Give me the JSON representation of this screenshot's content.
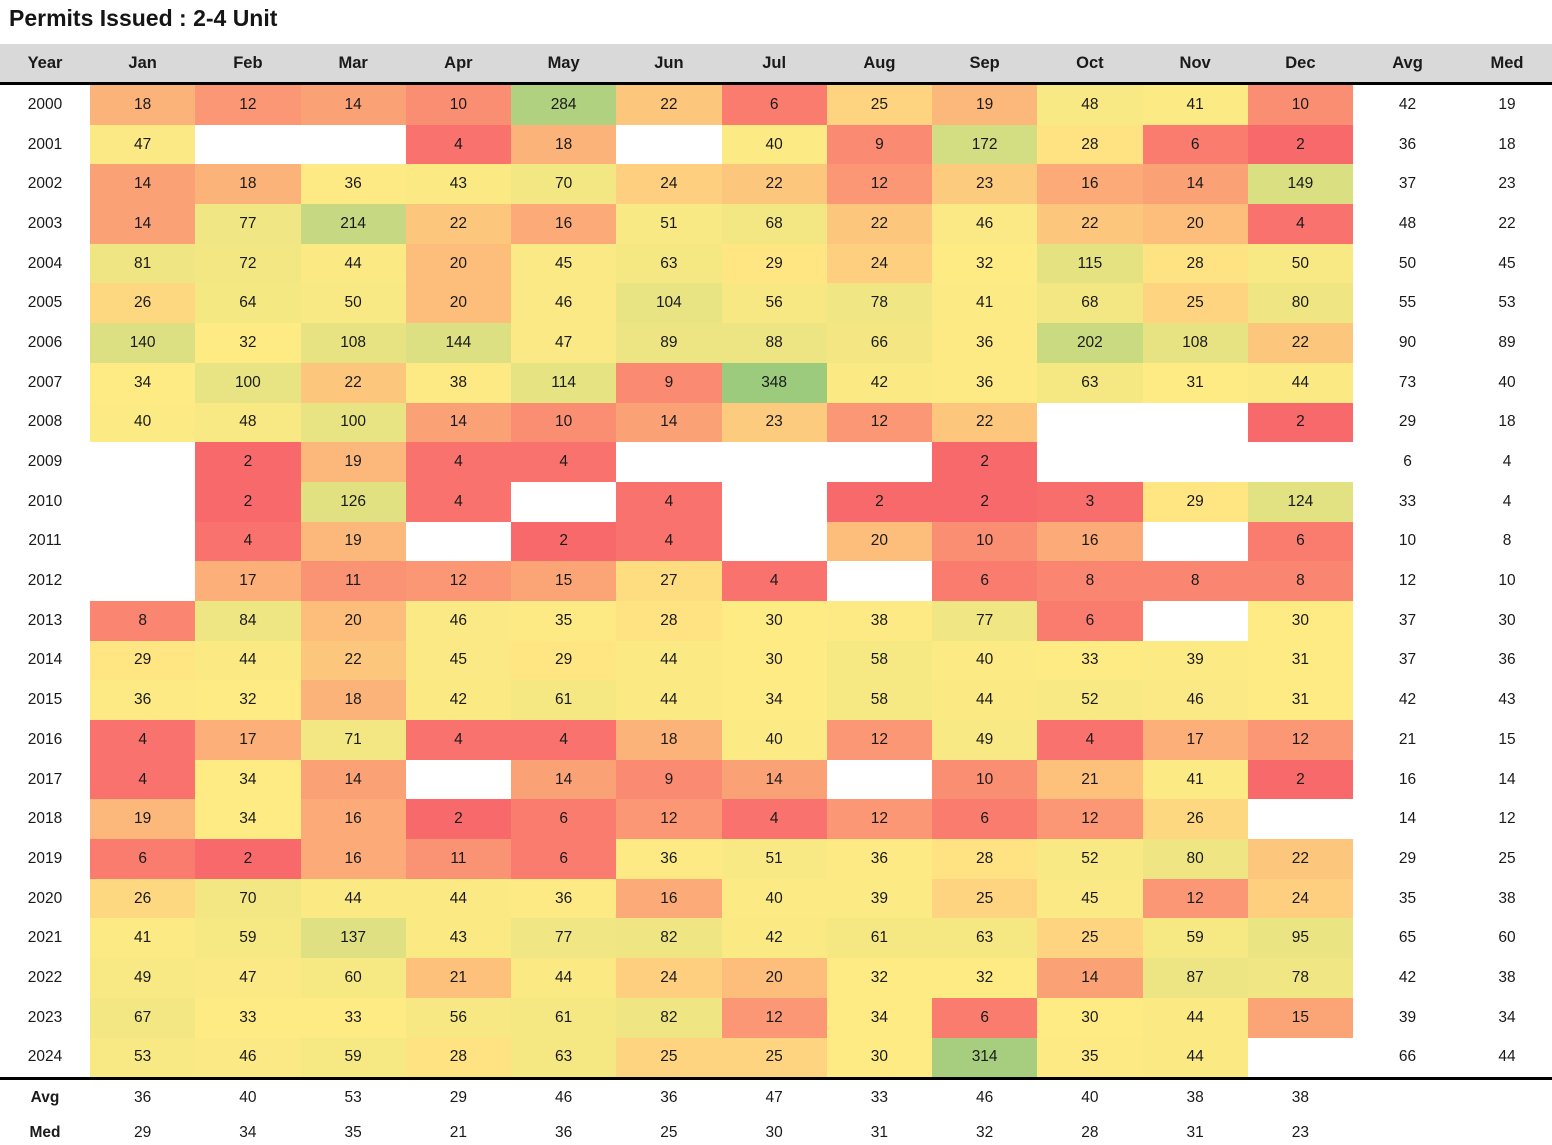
{
  "title": "Permits Issued : 2-4 Unit",
  "colors": {
    "header_bg": "#D9D9D9",
    "text": "#1A1A1A",
    "border": "#000000"
  },
  "chart_data": {
    "type": "heatmap",
    "title": "Permits Issued : 2-4 Unit",
    "columns": [
      "Year",
      "Jan",
      "Feb",
      "Mar",
      "Apr",
      "May",
      "Jun",
      "Jul",
      "Aug",
      "Sep",
      "Oct",
      "Nov",
      "Dec",
      "Avg",
      "Med"
    ],
    "color_scale": {
      "min_value": 2,
      "mid_value": 30,
      "max_value": 348,
      "low": "#F8696B",
      "mid": "#FFEB84",
      "high": "#9CCB7E",
      "empty": "#FFFFFF"
    },
    "rows": [
      {
        "year": "2000",
        "months": [
          18,
          12,
          14,
          10,
          284,
          22,
          6,
          25,
          19,
          48,
          41,
          10
        ],
        "avg": 42,
        "med": 19
      },
      {
        "year": "2001",
        "months": [
          47,
          null,
          null,
          4,
          18,
          null,
          40,
          9,
          172,
          28,
          6,
          2
        ],
        "avg": 36,
        "med": 18
      },
      {
        "year": "2002",
        "months": [
          14,
          18,
          36,
          43,
          70,
          24,
          22,
          12,
          23,
          16,
          14,
          149
        ],
        "avg": 37,
        "med": 23
      },
      {
        "year": "2003",
        "months": [
          14,
          77,
          214,
          22,
          16,
          51,
          68,
          22,
          46,
          22,
          20,
          4
        ],
        "avg": 48,
        "med": 22
      },
      {
        "year": "2004",
        "months": [
          81,
          72,
          44,
          20,
          45,
          63,
          29,
          24,
          32,
          115,
          28,
          50
        ],
        "avg": 50,
        "med": 45
      },
      {
        "year": "2005",
        "months": [
          26,
          64,
          50,
          20,
          46,
          104,
          56,
          78,
          41,
          68,
          25,
          80
        ],
        "avg": 55,
        "med": 53
      },
      {
        "year": "2006",
        "months": [
          140,
          32,
          108,
          144,
          47,
          89,
          88,
          66,
          36,
          202,
          108,
          22
        ],
        "avg": 90,
        "med": 89
      },
      {
        "year": "2007",
        "months": [
          34,
          100,
          22,
          38,
          114,
          9,
          348,
          42,
          36,
          63,
          31,
          44
        ],
        "avg": 73,
        "med": 40
      },
      {
        "year": "2008",
        "months": [
          40,
          48,
          100,
          14,
          10,
          14,
          23,
          12,
          22,
          null,
          null,
          2
        ],
        "avg": 29,
        "med": 18
      },
      {
        "year": "2009",
        "months": [
          null,
          2,
          19,
          4,
          4,
          null,
          null,
          null,
          2,
          null,
          null,
          null
        ],
        "avg": 6,
        "med": 4
      },
      {
        "year": "2010",
        "months": [
          null,
          2,
          126,
          4,
          null,
          4,
          null,
          2,
          2,
          3,
          29,
          124
        ],
        "avg": 33,
        "med": 4
      },
      {
        "year": "2011",
        "months": [
          null,
          4,
          19,
          null,
          2,
          4,
          null,
          20,
          10,
          16,
          null,
          6
        ],
        "avg": 10,
        "med": 8
      },
      {
        "year": "2012",
        "months": [
          null,
          17,
          11,
          12,
          15,
          27,
          4,
          null,
          6,
          8,
          8,
          8
        ],
        "avg": 12,
        "med": 10
      },
      {
        "year": "2013",
        "months": [
          8,
          84,
          20,
          46,
          35,
          28,
          30,
          38,
          77,
          6,
          null,
          30
        ],
        "avg": 37,
        "med": 30
      },
      {
        "year": "2014",
        "months": [
          29,
          44,
          22,
          45,
          29,
          44,
          30,
          58,
          40,
          33,
          39,
          31
        ],
        "avg": 37,
        "med": 36
      },
      {
        "year": "2015",
        "months": [
          36,
          32,
          18,
          42,
          61,
          44,
          34,
          58,
          44,
          52,
          46,
          31
        ],
        "avg": 42,
        "med": 43
      },
      {
        "year": "2016",
        "months": [
          4,
          17,
          71,
          4,
          4,
          18,
          40,
          12,
          49,
          4,
          17,
          12
        ],
        "avg": 21,
        "med": 15
      },
      {
        "year": "2017",
        "months": [
          4,
          34,
          14,
          null,
          14,
          9,
          14,
          null,
          10,
          21,
          41,
          2
        ],
        "avg": 16,
        "med": 14
      },
      {
        "year": "2018",
        "months": [
          19,
          34,
          16,
          2,
          6,
          12,
          4,
          12,
          6,
          12,
          26,
          null
        ],
        "avg": 14,
        "med": 12
      },
      {
        "year": "2019",
        "months": [
          6,
          2,
          16,
          11,
          6,
          36,
          51,
          36,
          28,
          52,
          80,
          22
        ],
        "avg": 29,
        "med": 25
      },
      {
        "year": "2020",
        "months": [
          26,
          70,
          44,
          44,
          36,
          16,
          40,
          39,
          25,
          45,
          12,
          24
        ],
        "avg": 35,
        "med": 38
      },
      {
        "year": "2021",
        "months": [
          41,
          59,
          137,
          43,
          77,
          82,
          42,
          61,
          63,
          25,
          59,
          95
        ],
        "avg": 65,
        "med": 60
      },
      {
        "year": "2022",
        "months": [
          49,
          47,
          60,
          21,
          44,
          24,
          20,
          32,
          32,
          14,
          87,
          78
        ],
        "avg": 42,
        "med": 38
      },
      {
        "year": "2023",
        "months": [
          67,
          33,
          33,
          56,
          61,
          82,
          12,
          34,
          6,
          30,
          44,
          15
        ],
        "avg": 39,
        "med": 34
      },
      {
        "year": "2024",
        "months": [
          53,
          46,
          59,
          28,
          63,
          25,
          25,
          30,
          314,
          35,
          44,
          null
        ],
        "avg": 66,
        "med": 44
      }
    ],
    "footer_rows": [
      {
        "label": "Avg",
        "months": [
          36,
          40,
          53,
          29,
          46,
          36,
          47,
          33,
          46,
          40,
          38,
          38
        ]
      },
      {
        "label": "Med",
        "months": [
          29,
          34,
          35,
          21,
          36,
          25,
          30,
          31,
          32,
          28,
          31,
          23
        ]
      }
    ]
  }
}
